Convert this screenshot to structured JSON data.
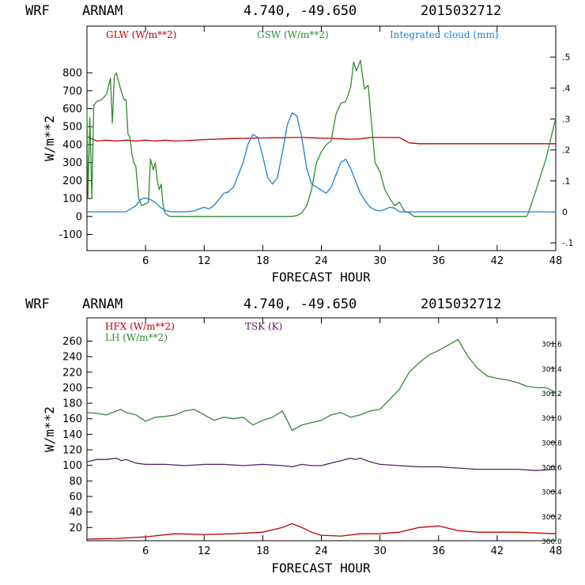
{
  "chart_data": [
    {
      "type": "line",
      "header": {
        "model": "WRF",
        "site": "ARNAM",
        "coords": "4.740, -49.650",
        "date": "2015032712"
      },
      "xlabel": "FORECAST HOUR",
      "ylabel": "W/m**2",
      "xlim": [
        0,
        48
      ],
      "ylim": [
        -190,
        1060
      ],
      "y2lim": [
        -0.125,
        0.6
      ],
      "xticks": [
        "6",
        "12",
        "18",
        "24",
        "30",
        "36",
        "42",
        "48"
      ],
      "yticks": [
        "-100",
        "0",
        "100",
        "200",
        "300",
        "400",
        "500",
        "600",
        "700",
        "800"
      ],
      "y2ticks": [
        "-.1",
        "0",
        ".1",
        ".2",
        ".3",
        ".4",
        ".5"
      ],
      "series": [
        {
          "name": "GLW (W/m**2)",
          "color": "#c00000",
          "axis": "left",
          "x": [
            0,
            1,
            2,
            3,
            4,
            5,
            6,
            7,
            8,
            9,
            10,
            11,
            12,
            13,
            14,
            15,
            16,
            17,
            18,
            19,
            20,
            21,
            22,
            23,
            24,
            25,
            26,
            27,
            28,
            29,
            30,
            31,
            32,
            32.5,
            33,
            34,
            36,
            40,
            44,
            48
          ],
          "y": [
            445,
            420,
            425,
            420,
            425,
            420,
            425,
            420,
            425,
            420,
            422,
            425,
            428,
            430,
            432,
            434,
            435,
            436,
            437,
            438,
            438,
            440,
            440,
            438,
            436,
            435,
            432,
            430,
            432,
            440,
            440,
            440,
            440,
            425,
            410,
            405,
            405,
            405,
            405,
            405
          ]
        },
        {
          "name": "GSW (W/m**2)",
          "color": "#2e8b2e",
          "axis": "left",
          "x": [
            0,
            0.1,
            0.3,
            0.5,
            0.7,
            1,
            1.5,
            2,
            2.4,
            2.6,
            2.8,
            3,
            3.2,
            3.5,
            3.8,
            4,
            4.2,
            4.4,
            4.6,
            4.8,
            5,
            5.3,
            5.6,
            6,
            6.3,
            6.5,
            6.8,
            7,
            7.2,
            7.4,
            7.6,
            7.8,
            8,
            8.3,
            8.6,
            9,
            10,
            15,
            20,
            21,
            21.5,
            22,
            22.5,
            23,
            23.5,
            24,
            24.5,
            25,
            25.5,
            26,
            26.5,
            27,
            27.3,
            27.6,
            28,
            28.4,
            28.8,
            29,
            29.5,
            30,
            30.5,
            31,
            31.5,
            32,
            32.5,
            33,
            33.5,
            34,
            40,
            45,
            45.2,
            46,
            47,
            48
          ],
          "y": [
            600,
            100,
            550,
            100,
            620,
            640,
            650,
            680,
            770,
            520,
            780,
            800,
            760,
            700,
            650,
            650,
            460,
            440,
            350,
            300,
            280,
            100,
            60,
            70,
            80,
            320,
            260,
            300,
            200,
            150,
            180,
            60,
            20,
            5,
            0,
            0,
            0,
            0,
            0,
            0,
            5,
            20,
            60,
            150,
            300,
            360,
            400,
            420,
            570,
            630,
            640,
            720,
            860,
            810,
            870,
            710,
            730,
            600,
            300,
            250,
            150,
            100,
            60,
            80,
            30,
            20,
            0,
            0,
            0,
            0,
            20,
            150,
            320,
            550
          ]
        },
        {
          "name": "Integrated cloud (mm)",
          "color": "#1e7fd8",
          "axis": "right",
          "x": [
            0,
            4,
            5,
            5.5,
            6,
            6.5,
            7,
            7.5,
            8,
            8.5,
            9,
            10,
            11,
            11.5,
            12,
            12.5,
            13,
            13.5,
            14,
            14.5,
            15,
            15.5,
            16,
            16.5,
            17,
            17.5,
            18,
            18.5,
            19,
            19.5,
            20,
            20.5,
            21,
            21.5,
            22,
            22.5,
            23,
            23.5,
            24,
            24.5,
            25,
            25.5,
            26,
            26.5,
            27,
            27.5,
            28,
            28.5,
            29,
            29.5,
            30,
            30.5,
            31,
            31.5,
            32,
            34,
            48
          ],
          "y": [
            0,
            0,
            0.02,
            0.04,
            0.045,
            0.04,
            0.03,
            0.015,
            0.005,
            0.001,
            0,
            0,
            0.003,
            0.01,
            0.015,
            0.01,
            0.02,
            0.04,
            0.06,
            0.065,
            0.08,
            0.12,
            0.16,
            0.22,
            0.25,
            0.24,
            0.18,
            0.11,
            0.09,
            0.11,
            0.19,
            0.28,
            0.32,
            0.31,
            0.24,
            0.14,
            0.09,
            0.08,
            0.07,
            0.06,
            0.08,
            0.12,
            0.16,
            0.17,
            0.14,
            0.1,
            0.06,
            0.035,
            0.015,
            0.006,
            0.003,
            0.008,
            0.015,
            0.012,
            0,
            0,
            0
          ]
        }
      ]
    },
    {
      "type": "line",
      "header": {
        "model": "WRF",
        "site": "ARNAM",
        "coords": "4.740, -49.650",
        "date": "2015032712"
      },
      "xlabel": "FORECAST HOUR",
      "ylabel": "W/m**2",
      "xlim": [
        0,
        48
      ],
      "ylim": [
        3,
        290
      ],
      "y2lim": [
        300.0,
        301.81
      ],
      "xticks": [
        "6",
        "12",
        "18",
        "24",
        "30",
        "36",
        "42",
        "48"
      ],
      "yticks": [
        "20",
        "40",
        "60",
        "80",
        "100",
        "120",
        "140",
        "160",
        "180",
        "200",
        "220",
        "240",
        "260"
      ],
      "y2ticks": [
        "300.0",
        "300.2",
        "300.4",
        "300.6",
        "300.8",
        "301.0",
        "301.2",
        "301.4",
        "301.6"
      ],
      "series": [
        {
          "name": "HFX (W/m**2)",
          "color": "#c00000",
          "axis": "left",
          "x": [
            0,
            3,
            6,
            9,
            12,
            15,
            18,
            20,
            21,
            22,
            23,
            24,
            26,
            28,
            30,
            32,
            34,
            36,
            38,
            40,
            44,
            48
          ],
          "y": [
            5,
            6,
            8,
            12,
            11,
            12,
            14,
            20,
            25,
            20,
            14,
            10,
            9,
            12,
            12,
            14,
            20,
            22,
            16,
            14,
            14,
            12
          ]
        },
        {
          "name": "LH (W/m**2)",
          "color": "#2e8b2e",
          "axis": "left",
          "x": [
            0,
            1,
            2,
            3,
            3.5,
            4,
            5,
            6,
            7,
            8,
            9,
            10,
            11,
            12,
            13,
            14,
            15,
            16,
            17,
            18,
            19,
            20,
            20.5,
            21,
            22,
            23,
            24,
            25,
            26,
            27,
            28,
            29,
            30,
            31,
            32,
            33,
            34,
            35,
            36,
            37,
            38,
            39,
            40,
            41,
            42,
            43,
            44,
            45,
            46,
            47,
            48
          ],
          "y": [
            168,
            167,
            165,
            170,
            172,
            168,
            165,
            157,
            162,
            163,
            165,
            170,
            172,
            165,
            158,
            162,
            160,
            162,
            152,
            158,
            162,
            170,
            158,
            145,
            152,
            155,
            158,
            165,
            168,
            162,
            165,
            170,
            172,
            185,
            198,
            220,
            232,
            242,
            248,
            255,
            262,
            240,
            225,
            215,
            212,
            210,
            207,
            202,
            200,
            200,
            194
          ]
        },
        {
          "name": "TSK (K)",
          "color": "#5a1a6b",
          "axis": "right",
          "x": [
            0,
            1,
            2,
            3,
            3.5,
            4,
            5,
            6,
            8,
            10,
            12,
            14,
            16,
            18,
            20,
            21,
            22,
            23,
            24,
            25,
            26,
            27,
            27.5,
            28,
            29,
            30,
            32,
            34,
            36,
            38,
            40,
            42,
            44,
            46,
            48
          ],
          "y": [
            300.64,
            300.66,
            300.66,
            300.67,
            300.65,
            300.66,
            300.63,
            300.62,
            300.62,
            300.61,
            300.62,
            300.62,
            300.61,
            300.62,
            300.61,
            300.6,
            300.62,
            300.61,
            300.61,
            300.63,
            300.65,
            300.67,
            300.66,
            300.67,
            300.64,
            300.62,
            300.61,
            300.6,
            300.6,
            300.59,
            300.58,
            300.58,
            300.58,
            300.57,
            300.58
          ]
        }
      ]
    }
  ]
}
